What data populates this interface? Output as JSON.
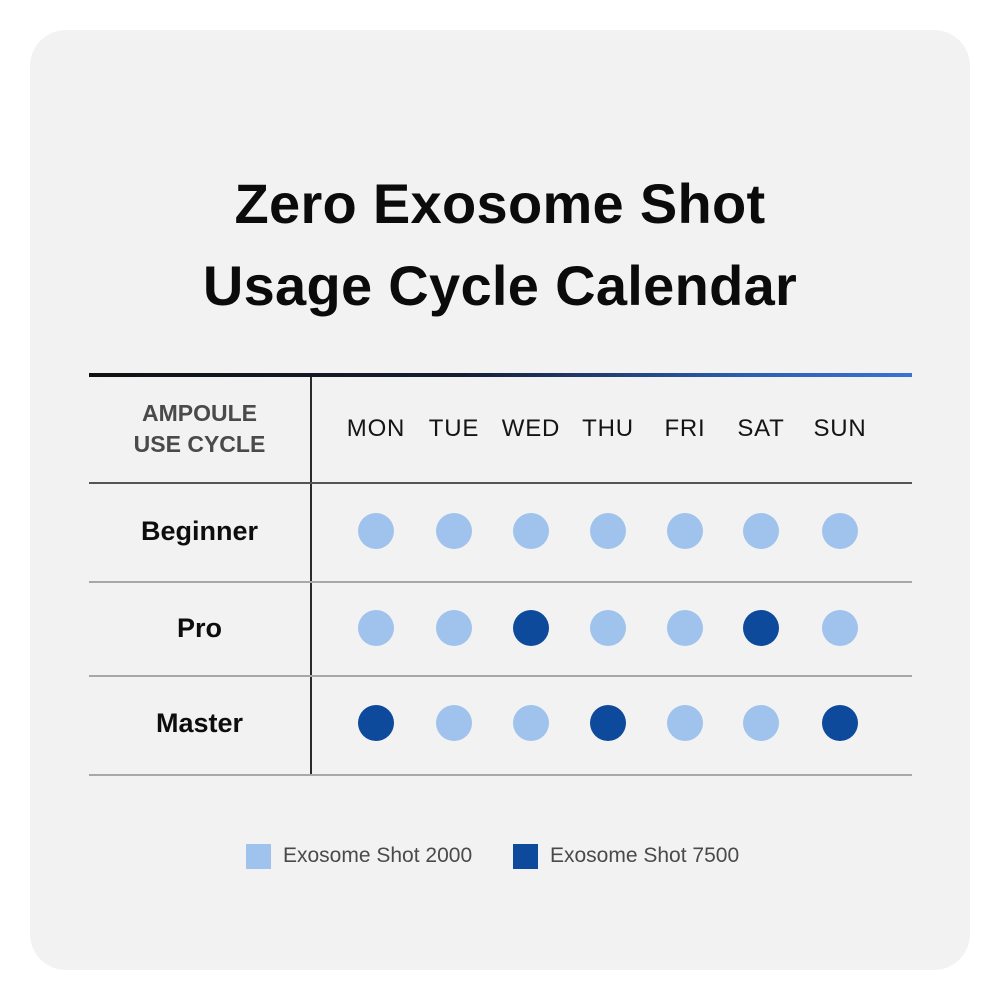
{
  "title_lines": [
    "Zero Exosome Shot",
    "Usage Cycle Calendar"
  ],
  "header": {
    "cycle_label_lines": [
      "AMPOULE",
      "USE CYCLE"
    ],
    "days": [
      "MON",
      "TUE",
      "WED",
      "THU",
      "FRI",
      "SAT",
      "SUN"
    ]
  },
  "rows": [
    {
      "label": "Beginner",
      "schedule": [
        "2000",
        "2000",
        "2000",
        "2000",
        "2000",
        "2000",
        "2000"
      ]
    },
    {
      "label": "Pro",
      "schedule": [
        "2000",
        "2000",
        "7500",
        "2000",
        "2000",
        "7500",
        "2000"
      ]
    },
    {
      "label": "Master",
      "schedule": [
        "7500",
        "2000",
        "2000",
        "7500",
        "2000",
        "2000",
        "7500"
      ]
    }
  ],
  "legend": [
    {
      "key": "2000",
      "label": "Exosome Shot 2000",
      "color": "#9fc3ec"
    },
    {
      "key": "7500",
      "label": "Exosome Shot 7500",
      "color": "#0d4a9c"
    }
  ]
}
